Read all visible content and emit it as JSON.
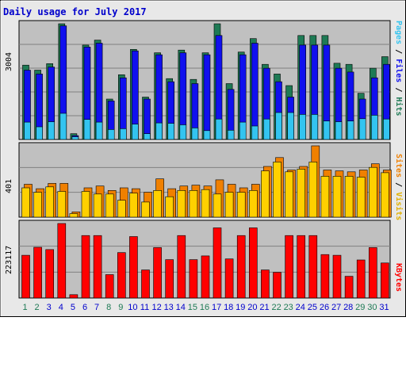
{
  "title": "Daily usage for July 2017",
  "colors": {
    "hits": "#1e7a55",
    "files": "#1010ee",
    "pages": "#33c4f0",
    "visits": "#ffd000",
    "sites": "#f08000",
    "kbytes": "#ff0000",
    "weekend": "#1e7a55",
    "weekday": "#0000cc"
  },
  "panels": {
    "top": {
      "max_label": "3004",
      "legend": [
        "Pages",
        "/",
        "Files",
        "/",
        "Hits"
      ]
    },
    "middle": {
      "max_label": "401",
      "legend": [
        "Sites",
        "/",
        "Visits"
      ]
    },
    "bottom": {
      "max_label": "223117",
      "legend": [
        "KBytes"
      ]
    }
  },
  "chart_data": {
    "type": "bar",
    "title": "Daily usage for July 2017",
    "categories": [
      "1",
      "2",
      "3",
      "4",
      "5",
      "6",
      "7",
      "8",
      "9",
      "10",
      "11",
      "12",
      "13",
      "14",
      "15",
      "16",
      "17",
      "18",
      "19",
      "20",
      "21",
      "22",
      "23",
      "24",
      "25",
      "26",
      "27",
      "28",
      "29",
      "30",
      "31"
    ],
    "weekend_days": [
      1,
      2,
      8,
      9,
      15,
      16,
      22,
      23,
      29,
      30
    ],
    "panels": [
      {
        "name": "top",
        "ylim": [
          0,
          3004
        ],
        "series": [
          {
            "name": "Hits",
            "values": [
              1930,
              1800,
              1970,
              3004,
              150,
              2450,
              2580,
              1050,
              1680,
              2340,
              1100,
              2250,
              1580,
              2320,
              1560,
              2250,
              3004,
              1450,
              2270,
              2620,
              1950,
              1700,
              1400,
              2700,
              2700,
              2700,
              1980,
              1950,
              1200,
              1850,
              2150
            ]
          },
          {
            "name": "Files",
            "values": [
              1800,
              1700,
              1880,
              2950,
              100,
              2400,
              2500,
              1000,
              1600,
              2300,
              1050,
              2200,
              1500,
              2250,
              1450,
              2200,
              2700,
              1300,
              2200,
              2500,
              1850,
              1500,
              1100,
              2450,
              2450,
              2450,
              1850,
              1750,
              1050,
              1600,
              1950
            ]
          },
          {
            "name": "Pages",
            "values": [
              450,
              330,
              460,
              680,
              70,
              520,
              450,
              260,
              280,
              400,
              150,
              430,
              420,
              380,
              300,
              230,
              530,
              240,
              450,
              350,
              530,
              700,
              700,
              650,
              650,
              480,
              460,
              480,
              540,
              630,
              530
            ]
          }
        ]
      },
      {
        "name": "middle",
        "ylim": [
          0,
          401
        ],
        "series": [
          {
            "name": "Visits",
            "values": [
              165,
              140,
              170,
              145,
              20,
              145,
              130,
              130,
              95,
              135,
              85,
              150,
              115,
              150,
              150,
              155,
              130,
              140,
              140,
              150,
              260,
              310,
              255,
              270,
              310,
              230,
              230,
              230,
              225,
              280,
              250
            ]
          },
          {
            "name": "Sites",
            "values": [
              185,
              160,
              190,
              190,
              30,
              165,
              175,
              150,
              165,
              160,
              140,
              215,
              160,
              175,
              180,
              175,
              210,
              185,
              165,
              185,
              285,
              335,
              265,
              285,
              401,
              265,
              260,
              255,
              265,
              300,
              265
            ]
          }
        ]
      },
      {
        "name": "bottom",
        "ylim": [
          0,
          223117
        ],
        "series": [
          {
            "name": "KBytes",
            "values": [
              128000,
              152000,
              145000,
              223117,
              10000,
              187000,
              187000,
              70000,
              136000,
              184000,
              84000,
              151000,
              115000,
              187000,
              115000,
              126000,
              210000,
              117000,
              187000,
              210000,
              84000,
              77000,
              187000,
              187000,
              187000,
              130000,
              128000,
              65000,
              114000,
              151000,
              105000
            ]
          }
        ]
      }
    ],
    "grid": true,
    "legend": "right"
  }
}
